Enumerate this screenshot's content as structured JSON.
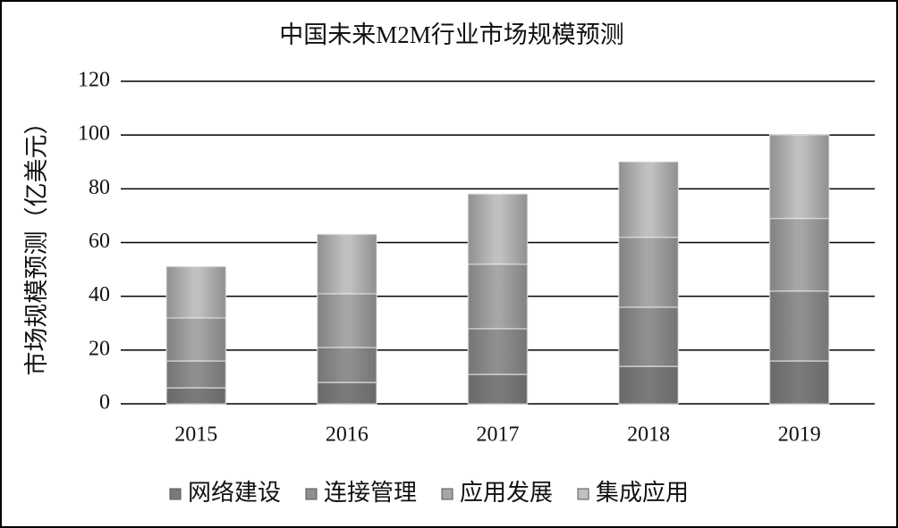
{
  "chart_data": {
    "type": "stacked-bar",
    "title": "中国未来M2M行业市场规模预测",
    "y_label": "市场规模预测（亿美元）",
    "categories": [
      "2015",
      "2016",
      "2017",
      "2018",
      "2019"
    ],
    "series": [
      {
        "name": "网络建设",
        "color": "#7a7a7a",
        "values": [
          6,
          8,
          11,
          14,
          16
        ]
      },
      {
        "name": "连接管理",
        "color": "#8f8f8f",
        "values": [
          10,
          13,
          17,
          22,
          26
        ]
      },
      {
        "name": "应用发展",
        "color": "#a6a6a6",
        "values": [
          16,
          20,
          24,
          26,
          27
        ]
      },
      {
        "name": "集成应用",
        "color": "#c0c0c0",
        "values": [
          19,
          22,
          26,
          28,
          31
        ]
      }
    ],
    "ylim": [
      0,
      120
    ],
    "yticks": [
      0,
      20,
      40,
      60,
      80,
      100,
      120
    ],
    "grid": true,
    "legend": "bottom"
  }
}
